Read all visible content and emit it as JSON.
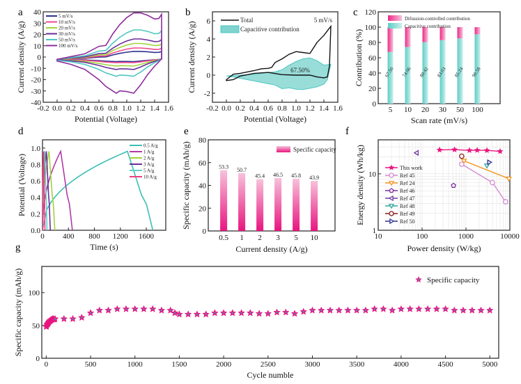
{
  "panels": {
    "a": "a",
    "b": "b",
    "c": "c",
    "d": "d",
    "e": "e",
    "f": "f",
    "g": "g"
  },
  "colors": {
    "pink": "#e8157f",
    "pink_light": "#f5a9cc",
    "teal": "#4cc7c1",
    "teal_light": "#a9e3df",
    "orange": "#f39621",
    "purple": "#7b2f9c",
    "navy": "#2e3192",
    "lime": "#9fd43a",
    "darkred": "#8b1a1a",
    "lilac": "#d38bd0"
  },
  "chart_data": [
    {
      "id": "a",
      "type": "line",
      "title": "",
      "xlabel": "Potential (Voltage)",
      "ylabel": "Current density (A/g)",
      "xlim": [
        -0.2,
        1.6
      ],
      "ylim": [
        -40,
        40
      ],
      "xticks": [
        "-0.2",
        "0.0",
        "0.2",
        "0.4",
        "0.6",
        "0.8",
        "1.0",
        "1.2",
        "1.4",
        "1.6"
      ],
      "yticks": [
        "-40",
        "-30",
        "-20",
        "-10",
        "0",
        "10",
        "20",
        "30",
        "40"
      ],
      "legend": "top-left",
      "series": [
        {
          "name": "5   mV/s",
          "color": "#2e3192",
          "peak_upper": 5,
          "peak_lower": -3
        },
        {
          "name": "10  mV/s",
          "color": "#ef4a8a",
          "peak_upper": 8,
          "peak_lower": -4
        },
        {
          "name": "20  mV/s",
          "color": "#9fd43a",
          "peak_upper": 12,
          "peak_lower": -7
        },
        {
          "name": "30  mV/s",
          "color": "#6a2c9c",
          "peak_upper": 16,
          "peak_lower": -10
        },
        {
          "name": "50  mV/s",
          "color": "#4cc7c1",
          "peak_upper": 24,
          "peak_lower": -16
        },
        {
          "name": "100 mV/s",
          "color": "#8e2c9e",
          "peak_upper": 39,
          "peak_lower": -31
        }
      ]
    },
    {
      "id": "b",
      "type": "area",
      "xlabel": "Potential (Voltage)",
      "ylabel": "Current density (A/g)",
      "xlim": [
        -0.2,
        1.6
      ],
      "ylim": [
        -3,
        7
      ],
      "xticks": [
        "-0.2",
        "0.0",
        "0.2",
        "0.4",
        "0.6",
        "0.8",
        "1.0",
        "1.2",
        "1.4",
        "1.6"
      ],
      "yticks": [
        "-2",
        "0",
        "2",
        "4",
        "6"
      ],
      "legend": "top-left",
      "annotation_rate": "5 mV/s",
      "annotation_pct": "67.50%",
      "series": [
        {
          "name": "Total",
          "upper": [
            [
              0.0,
              -0.5
            ],
            [
              0.1,
              0.1
            ],
            [
              0.2,
              0.2
            ],
            [
              0.3,
              0.35
            ],
            [
              0.4,
              0.5
            ],
            [
              0.5,
              0.7
            ],
            [
              0.6,
              0.75
            ],
            [
              0.65,
              0.85
            ],
            [
              0.7,
              1.4
            ],
            [
              0.8,
              1.8
            ],
            [
              0.9,
              2.3
            ],
            [
              1.0,
              2.6
            ],
            [
              1.1,
              2.5
            ],
            [
              1.2,
              2.4
            ],
            [
              1.3,
              3.6
            ],
            [
              1.4,
              4.4
            ],
            [
              1.45,
              4.9
            ],
            [
              1.5,
              5.4
            ]
          ],
          "lower": [
            [
              1.5,
              5.4
            ],
            [
              1.48,
              1.0
            ],
            [
              1.45,
              -0.2
            ],
            [
              1.4,
              -0.3
            ],
            [
              1.3,
              -0.2
            ],
            [
              1.2,
              0.0
            ],
            [
              1.0,
              0.0
            ],
            [
              0.8,
              0.05
            ],
            [
              0.6,
              0.3
            ],
            [
              0.4,
              0.2
            ],
            [
              0.2,
              -0.1
            ],
            [
              0.1,
              -0.5
            ],
            [
              0.0,
              -0.6
            ]
          ]
        },
        {
          "name": "Capacitive contribution",
          "upper": [
            [
              0.0,
              -0.1
            ],
            [
              0.2,
              0.0
            ],
            [
              0.4,
              0.1
            ],
            [
              0.6,
              0.3
            ],
            [
              0.7,
              0.35
            ],
            [
              0.8,
              0.6
            ],
            [
              0.9,
              1.1
            ],
            [
              1.0,
              1.5
            ],
            [
              1.1,
              1.8
            ],
            [
              1.2,
              1.9
            ],
            [
              1.3,
              1.6
            ],
            [
              1.4,
              1.1
            ],
            [
              1.5,
              1.2
            ]
          ],
          "lower": [
            [
              1.5,
              1.2
            ],
            [
              1.45,
              -0.5
            ],
            [
              1.4,
              -1.0
            ],
            [
              1.3,
              -1.3
            ],
            [
              1.1,
              -1.6
            ],
            [
              1.0,
              -1.55
            ],
            [
              0.9,
              -1.4
            ],
            [
              0.8,
              -1.5
            ],
            [
              0.7,
              -1.1
            ],
            [
              0.5,
              -0.8
            ],
            [
              0.3,
              -0.5
            ],
            [
              0.1,
              -0.2
            ],
            [
              0.0,
              -0.1
            ]
          ]
        }
      ]
    },
    {
      "id": "c",
      "type": "bar",
      "xlabel": "Scan rate (mV/s)",
      "ylabel": "Contribution (%)",
      "ylim": [
        0,
        120
      ],
      "yticks": [
        "0",
        "20",
        "40",
        "60",
        "80",
        "100",
        "120"
      ],
      "categories": [
        "5",
        "10",
        "20",
        "30",
        "50",
        "100"
      ],
      "legend": "top",
      "series": [
        {
          "name": "Capacitive contribution",
          "values": [
            67.5,
            74.06,
            80.42,
            83.03,
            85.24,
            90.58
          ]
        },
        {
          "name": "Difussion-controlled contribution",
          "values": [
            32.5,
            25.94,
            19.58,
            16.97,
            14.76,
            9.42
          ]
        }
      ],
      "data_labels": [
        "67.50",
        "74.06",
        "80.42",
        "83.03",
        "85.24",
        "90.58"
      ]
    },
    {
      "id": "d",
      "type": "line",
      "xlabel": "Time (s)",
      "ylabel": "Potential (Voltage)",
      "xlim": [
        0,
        1900
      ],
      "ylim": [
        0,
        1.1
      ],
      "xticks": [
        "0",
        "400",
        "800",
        "1200",
        "1600"
      ],
      "yticks": [
        "0.0",
        "0.2",
        "0.4",
        "0.6",
        "0.8",
        "1.0"
      ],
      "legend": "top-right",
      "series": [
        {
          "name": "0.5 A/g",
          "color": "#3bbfb3",
          "charge_end": 1310,
          "discharge_end": 1700
        },
        {
          "name": "1   A/g",
          "color": "#b03aa8",
          "charge_end": 280,
          "discharge_end": 460
        },
        {
          "name": "2   A/g",
          "color": "#9fd43a",
          "charge_end": 100,
          "discharge_end": 190
        },
        {
          "name": "3   A/g",
          "color": "#6a2c9c",
          "charge_end": 60,
          "discharge_end": 120
        },
        {
          "name": "5   A/g",
          "color": "#5fd0cc",
          "charge_end": 35,
          "discharge_end": 70
        },
        {
          "name": "10  A/g",
          "color": "#ef3f7e",
          "charge_end": 18,
          "discharge_end": 38
        }
      ],
      "vmax": 0.96
    },
    {
      "id": "e",
      "type": "bar",
      "xlabel": "Current density (A/g)",
      "ylabel": "Specific capacity (mAh/g)",
      "ylim": [
        0,
        80
      ],
      "yticks": [
        "0",
        "20",
        "40",
        "60",
        "80"
      ],
      "categories": [
        "0.5",
        "1",
        "2",
        "3",
        "5",
        "10"
      ],
      "legend": "top-right",
      "series": [
        {
          "name": "Specific capacity",
          "values": [
            53.3,
            50.7,
            45.4,
            46.5,
            45.8,
            43.9
          ]
        }
      ],
      "data_labels": [
        "53.3",
        "50.7",
        "45.4",
        "46.5",
        "45.8",
        "43.9"
      ]
    },
    {
      "id": "f",
      "type": "scatter",
      "xlabel": "Power density (W/kg)",
      "ylabel": "Energy density (Wh/kg)",
      "xscale": "log",
      "yscale": "log",
      "xlim": [
        10,
        10000
      ],
      "ylim": [
        1,
        40
      ],
      "xticks": [
        "10",
        "100",
        "1000",
        "10000"
      ],
      "yticks": [
        "1",
        "10"
      ],
      "grid": true,
      "legend": "left",
      "series": [
        {
          "name": "This work",
          "color": "#e8157f",
          "marker": "star",
          "line": true,
          "points": [
            [
              250,
              26.5
            ],
            [
              550,
              26.8
            ],
            [
              1200,
              26
            ],
            [
              1800,
              26.2
            ],
            [
              3000,
              26
            ],
            [
              6000,
              25
            ]
          ]
        },
        {
          "name": "Ref 45",
          "color": "#d38bd0",
          "marker": "circle",
          "line": true,
          "points": [
            [
              800,
              14.8
            ],
            [
              4000,
              7
            ],
            [
              8000,
              3.2
            ]
          ]
        },
        {
          "name": "Ref 24",
          "color": "#f39621",
          "marker": "triangle-down",
          "line": true,
          "points": [
            [
              900,
              17
            ],
            [
              9500,
              8.2
            ]
          ]
        },
        {
          "name": "Ref 46",
          "color": "#7b2f9c",
          "marker": "pentagon",
          "line": false,
          "points": [
            [
              520,
              6.2
            ]
          ]
        },
        {
          "name": "Ref 47",
          "color": "#6a3aa0",
          "marker": "triangle-left",
          "line": false,
          "points": [
            [
              75,
              23.5
            ]
          ]
        },
        {
          "name": "Ref 48",
          "color": "#2fa59e",
          "marker": "triangle-down",
          "line": false,
          "points": [
            [
              3000,
              14
            ]
          ]
        },
        {
          "name": "Ref 49",
          "color": "#8b1a1a",
          "marker": "circle",
          "line": false,
          "points": [
            [
              800,
              20.5
            ]
          ]
        },
        {
          "name": "Ref 50",
          "color": "#2e3192",
          "marker": "triangle-right",
          "line": false,
          "points": [
            [
              3400,
              16
            ]
          ]
        }
      ]
    },
    {
      "id": "g",
      "type": "scatter",
      "xlabel": "Cycle numble",
      "ylabel": "Specific capacity (mAh/g)",
      "xlim": [
        -50,
        5100
      ],
      "ylim": [
        0,
        140
      ],
      "xticks": [
        "0",
        "500",
        "1000",
        "1500",
        "2000",
        "2500",
        "3000",
        "3500",
        "4000",
        "4500",
        "5000"
      ],
      "yticks": [
        "0",
        "50",
        "100"
      ],
      "legend": "top-right",
      "series": [
        {
          "name": "Specific capacity",
          "x": [
            0,
            5,
            10,
            15,
            20,
            25,
            30,
            35,
            40,
            45,
            50,
            55,
            60,
            65,
            70,
            75,
            80,
            90,
            100,
            200,
            300,
            400,
            500,
            600,
            700,
            800,
            900,
            1000,
            1100,
            1200,
            1300,
            1400,
            1450,
            1500,
            1600,
            1700,
            1800,
            1900,
            2000,
            2100,
            2200,
            2300,
            2400,
            2500,
            2600,
            2700,
            2800,
            2900,
            3000,
            3100,
            3200,
            3300,
            3400,
            3500,
            3600,
            3700,
            3800,
            3900,
            4000,
            4100,
            4200,
            4300,
            4400,
            4500,
            4600,
            4700,
            4800,
            4900,
            5000
          ],
          "y": [
            48,
            49,
            51,
            52,
            53,
            54,
            55,
            56,
            57,
            57,
            58,
            58,
            59,
            59,
            59,
            60,
            60,
            59,
            60,
            60,
            60,
            62,
            69,
            73,
            73,
            75,
            75,
            75,
            75,
            75,
            73,
            73,
            69,
            67,
            67,
            67,
            67,
            69,
            69,
            69,
            69,
            69,
            68,
            68,
            70,
            70,
            68,
            71,
            73,
            73,
            73,
            73,
            73,
            73,
            73,
            75,
            75,
            73,
            75,
            75,
            75,
            75,
            75,
            75,
            73,
            73,
            73,
            73,
            73
          ]
        }
      ]
    }
  ]
}
